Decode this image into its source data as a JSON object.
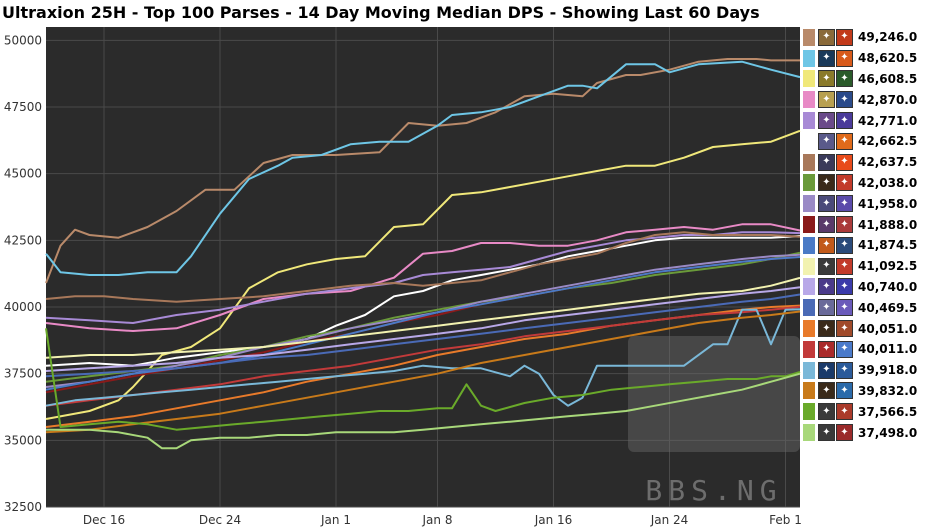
{
  "chart_data": {
    "type": "line",
    "title": "Ultraxion 25H - Top 100 Parses - 14 Day Moving Median DPS - Showing Last 60 Days",
    "xlabel": "",
    "ylabel": "",
    "x_ticks": [
      "Dec 16",
      "Dec 24",
      "Jan 1",
      "Jan 8",
      "Jan 16",
      "Jan 24",
      "Feb 1"
    ],
    "x_tick_days": [
      4,
      12,
      20,
      27,
      35,
      43,
      51
    ],
    "xlim": [
      0,
      52
    ],
    "ylim": [
      32500,
      50500
    ],
    "y_ticks": [
      32500,
      35000,
      37500,
      40000,
      42500,
      45000,
      47500,
      50000
    ],
    "y_tick_labels": [
      "32500",
      "35000",
      "37500",
      "40000",
      "42500",
      "45000",
      "47500",
      "50000"
    ],
    "grid": true,
    "legend_position": "right",
    "watermark": "BBS.NG",
    "series": [
      {
        "name": "49,246.0",
        "color": "#b98a6a",
        "icons": [
          "#8a6a3a",
          "#c23a1a"
        ],
        "x": [
          0,
          1,
          2,
          3,
          5,
          7,
          9,
          11,
          13,
          15,
          17,
          20,
          23,
          25,
          27,
          29,
          31,
          33,
          35,
          37,
          38,
          40,
          41,
          43,
          45,
          47,
          49,
          50,
          52
        ],
        "values": [
          40900,
          42300,
          42900,
          42700,
          42600,
          43000,
          43600,
          44400,
          44400,
          45400,
          45700,
          45700,
          45800,
          46900,
          46800,
          46900,
          47300,
          47900,
          48000,
          47900,
          48400,
          48700,
          48700,
          48900,
          49200,
          49300,
          49300,
          49246,
          49246
        ]
      },
      {
        "name": "48,620.5",
        "color": "#6ec6e6",
        "icons": [
          "#1a3a5a",
          "#d85a1a"
        ],
        "x": [
          0,
          1,
          3,
          5,
          7,
          8,
          9,
          10,
          12,
          14,
          16,
          17,
          19,
          21,
          23,
          25,
          27,
          28,
          30,
          31,
          32,
          34,
          36,
          37,
          38,
          40,
          42,
          43,
          45,
          48,
          50,
          52
        ],
        "values": [
          42000,
          41300,
          41200,
          41200,
          41300,
          41300,
          41300,
          41900,
          43500,
          44800,
          45300,
          45600,
          45700,
          46100,
          46200,
          46200,
          46800,
          47200,
          47300,
          47400,
          47500,
          47900,
          48300,
          48300,
          48200,
          49100,
          49100,
          48800,
          49100,
          49200,
          48900,
          48620
        ]
      },
      {
        "name": "46,608.5",
        "color": "#f0e87a",
        "icons": [
          "#8a7a2a",
          "#2a5a2a"
        ],
        "x": [
          0,
          3,
          5,
          6,
          8,
          10,
          12,
          14,
          16,
          18,
          20,
          22,
          24,
          26,
          28,
          30,
          32,
          34,
          36,
          38,
          40,
          42,
          44,
          46,
          48,
          50,
          52
        ],
        "values": [
          35800,
          36100,
          36500,
          37000,
          38200,
          38500,
          39200,
          40700,
          41300,
          41600,
          41800,
          41900,
          43000,
          43100,
          44200,
          44300,
          44500,
          44700,
          44900,
          45100,
          45300,
          45300,
          45600,
          46000,
          46100,
          46200,
          46608
        ]
      },
      {
        "name": "42,870.0",
        "color": "#e88ac6",
        "icons": [
          "#b8a050",
          "#2a4a8a"
        ],
        "x": [
          0,
          3,
          6,
          9,
          12,
          15,
          18,
          21,
          24,
          26,
          28,
          30,
          32,
          34,
          36,
          38,
          40,
          42,
          44,
          46,
          48,
          50,
          52
        ],
        "values": [
          39400,
          39200,
          39100,
          39200,
          39700,
          40300,
          40500,
          40600,
          41100,
          42000,
          42100,
          42400,
          42400,
          42300,
          42300,
          42500,
          42800,
          42900,
          43000,
          42900,
          43100,
          43100,
          42870
        ]
      },
      {
        "name": "42,771.0",
        "color": "#a88ad6",
        "icons": [
          "#6a4a8a",
          "#4a3a9a"
        ],
        "x": [
          0,
          3,
          6,
          9,
          12,
          15,
          18,
          21,
          24,
          26,
          28,
          30,
          32,
          34,
          36,
          38,
          40,
          42,
          44,
          46,
          48,
          50,
          52
        ],
        "values": [
          39600,
          39500,
          39400,
          39700,
          39900,
          40200,
          40500,
          40700,
          40900,
          41200,
          41300,
          41400,
          41500,
          41800,
          42100,
          42300,
          42500,
          42600,
          42700,
          42700,
          42800,
          42800,
          42771
        ]
      },
      {
        "name": "42,662.5",
        "color": "#ffffff",
        "icons": [
          "#5a5a8a",
          "#e06a1a"
        ],
        "x": [
          0,
          3,
          6,
          9,
          12,
          15,
          18,
          20,
          22,
          24,
          26,
          28,
          30,
          32,
          34,
          36,
          38,
          40,
          42,
          44,
          46,
          48,
          50,
          52
        ],
        "values": [
          37800,
          37900,
          37800,
          38100,
          38300,
          38500,
          38800,
          39300,
          39700,
          40400,
          40600,
          41000,
          41200,
          41400,
          41600,
          41900,
          42100,
          42300,
          42500,
          42600,
          42600,
          42600,
          42600,
          42662
        ]
      },
      {
        "name": "42,637.5",
        "color": "#a8785a",
        "icons": [
          "#3a3a5a",
          "#e84a1a"
        ],
        "x": [
          0,
          2,
          4,
          6,
          9,
          12,
          15,
          18,
          21,
          24,
          26,
          28,
          30,
          32,
          34,
          36,
          38,
          40,
          42,
          44,
          46,
          48,
          50,
          52
        ],
        "values": [
          40300,
          40400,
          40400,
          40300,
          40200,
          40300,
          40400,
          40600,
          40800,
          40900,
          40800,
          40900,
          41000,
          41300,
          41600,
          41800,
          42000,
          42400,
          42700,
          42800,
          42700,
          42700,
          42700,
          42637
        ]
      },
      {
        "name": "42,038.0",
        "color": "#6a9a3a",
        "icons": [
          "#3a2a1a",
          "#c23a2a"
        ],
        "x": [
          0,
          3,
          6,
          9,
          12,
          15,
          18,
          21,
          24,
          27,
          30,
          33,
          36,
          39,
          42,
          45,
          48,
          50,
          52
        ],
        "values": [
          37200,
          37400,
          37600,
          37800,
          38200,
          38500,
          38900,
          39200,
          39600,
          39900,
          40200,
          40400,
          40700,
          40900,
          41200,
          41400,
          41600,
          41800,
          42038
        ]
      },
      {
        "name": "41,958.0",
        "color": "#9a8ac6",
        "icons": [
          "#4a4a7a",
          "#5a4aaa"
        ],
        "x": [
          0,
          3,
          6,
          9,
          12,
          15,
          18,
          21,
          24,
          27,
          30,
          33,
          36,
          39,
          42,
          45,
          48,
          50,
          52
        ],
        "values": [
          37000,
          37200,
          37500,
          37800,
          38100,
          38500,
          38800,
          39200,
          39500,
          39800,
          40200,
          40500,
          40800,
          41100,
          41400,
          41600,
          41800,
          41900,
          41958
        ]
      },
      {
        "name": "41,888.0",
        "color": "#8a1a1a",
        "icons": [
          "#5a3a6a",
          "#aa3a3a"
        ],
        "x": [
          0,
          3,
          6,
          9,
          12,
          15,
          18,
          21,
          24,
          27,
          30,
          33,
          36,
          39,
          42,
          45,
          48,
          50,
          52
        ],
        "values": [
          36800,
          37100,
          37400,
          37700,
          38000,
          38300,
          38700,
          39000,
          39400,
          39700,
          40100,
          40400,
          40700,
          41000,
          41300,
          41500,
          41700,
          41800,
          41888
        ]
      },
      {
        "name": "41,874.5",
        "color": "#4a7ac6",
        "icons": [
          "#c25a1a",
          "#2a4a7a"
        ],
        "x": [
          0,
          3,
          6,
          9,
          12,
          15,
          18,
          21,
          24,
          27,
          30,
          33,
          36,
          39,
          42,
          45,
          48,
          50,
          52
        ],
        "values": [
          36900,
          37200,
          37500,
          37700,
          37900,
          38200,
          38600,
          39000,
          39400,
          39800,
          40100,
          40400,
          40700,
          41000,
          41300,
          41500,
          41700,
          41800,
          41874
        ]
      },
      {
        "name": "41,092.5",
        "color": "#f2f2b0",
        "icons": [
          "#3a3a3a",
          "#c23a2a"
        ],
        "x": [
          0,
          3,
          6,
          9,
          12,
          15,
          18,
          21,
          24,
          27,
          30,
          33,
          36,
          39,
          42,
          45,
          48,
          50,
          52
        ],
        "values": [
          38100,
          38200,
          38200,
          38300,
          38400,
          38500,
          38700,
          38900,
          39100,
          39300,
          39500,
          39700,
          39900,
          40100,
          40300,
          40500,
          40600,
          40800,
          41092
        ]
      },
      {
        "name": "40,740.0",
        "color": "#b8a8e8",
        "icons": [
          "#4a3a8a",
          "#3a3aaa"
        ],
        "x": [
          0,
          3,
          6,
          9,
          12,
          15,
          18,
          21,
          24,
          27,
          30,
          33,
          36,
          39,
          42,
          45,
          48,
          50,
          52
        ],
        "values": [
          37600,
          37700,
          37800,
          37900,
          38100,
          38200,
          38400,
          38600,
          38800,
          39000,
          39200,
          39500,
          39700,
          39900,
          40100,
          40300,
          40500,
          40600,
          40740
        ]
      },
      {
        "name": "40,469.5",
        "color": "#4a6ab6",
        "icons": [
          "#6a6a9a",
          "#6a5aba"
        ],
        "x": [
          0,
          3,
          6,
          9,
          12,
          15,
          18,
          21,
          24,
          27,
          30,
          33,
          36,
          39,
          42,
          45,
          48,
          50,
          52
        ],
        "values": [
          37400,
          37500,
          37600,
          37700,
          37900,
          38100,
          38200,
          38400,
          38600,
          38800,
          39000,
          39200,
          39400,
          39600,
          39800,
          40000,
          40200,
          40300,
          40469
        ]
      },
      {
        "name": "40,051.0",
        "color": "#e87a2a",
        "icons": [
          "#3a2a1a",
          "#a04a2a"
        ],
        "x": [
          0,
          3,
          6,
          9,
          12,
          15,
          18,
          21,
          24,
          27,
          30,
          33,
          36,
          39,
          42,
          45,
          48,
          50,
          52
        ],
        "values": [
          35500,
          35700,
          35900,
          36200,
          36500,
          36800,
          37200,
          37500,
          37800,
          38200,
          38500,
          38800,
          39000,
          39300,
          39500,
          39700,
          39900,
          40000,
          40051
        ]
      },
      {
        "name": "40,011.0",
        "color": "#c23a3a",
        "icons": [
          "#aa2a2a",
          "#4a7aca"
        ],
        "x": [
          0,
          3,
          6,
          9,
          12,
          15,
          18,
          21,
          24,
          27,
          30,
          33,
          36,
          39,
          42,
          45,
          48,
          50,
          52
        ],
        "values": [
          36300,
          36500,
          36700,
          36900,
          37100,
          37400,
          37600,
          37800,
          38100,
          38400,
          38600,
          38900,
          39100,
          39300,
          39500,
          39700,
          39800,
          39900,
          40011
        ]
      },
      {
        "name": "39,918.0",
        "color": "#7ab8d8",
        "icons": [
          "#1a3a6a",
          "#2a5a9a"
        ],
        "x": [
          0,
          2,
          4,
          6,
          8,
          10,
          12,
          14,
          16,
          18,
          20,
          22,
          24,
          26,
          28,
          30,
          32,
          33,
          34,
          35,
          36,
          37,
          38,
          40,
          42,
          44,
          46,
          47,
          48,
          49,
          50,
          51,
          52
        ],
        "values": [
          36300,
          36500,
          36600,
          36700,
          36800,
          36900,
          37000,
          37100,
          37200,
          37300,
          37400,
          37500,
          37600,
          37800,
          37700,
          37700,
          37400,
          37800,
          37500,
          36700,
          36300,
          36600,
          37800,
          37800,
          37800,
          37800,
          38600,
          38600,
          39900,
          39900,
          38600,
          39900,
          39918
        ]
      },
      {
        "name": "39,832.0",
        "color": "#c87a1a",
        "icons": [
          "#3a2a1a",
          "#2a6aaa"
        ],
        "x": [
          0,
          3,
          6,
          9,
          12,
          15,
          18,
          21,
          24,
          27,
          30,
          33,
          36,
          39,
          42,
          45,
          48,
          50,
          52
        ],
        "values": [
          35300,
          35400,
          35600,
          35800,
          36000,
          36300,
          36600,
          36900,
          37200,
          37500,
          37900,
          38200,
          38500,
          38800,
          39100,
          39400,
          39600,
          39700,
          39832
        ]
      },
      {
        "name": "37,566.5",
        "color": "#6aaa2a",
        "icons": [
          "#3a3a3a",
          "#aa3a2a"
        ],
        "x": [
          0,
          1,
          3,
          5,
          7,
          9,
          11,
          13,
          15,
          17,
          19,
          21,
          23,
          25,
          27,
          28,
          29,
          30,
          31,
          33,
          35,
          37,
          39,
          41,
          43,
          45,
          47,
          49,
          50,
          51,
          52
        ],
        "values": [
          39200,
          35500,
          35600,
          35700,
          35600,
          35400,
          35500,
          35600,
          35700,
          35800,
          35900,
          36000,
          36100,
          36100,
          36200,
          36200,
          37100,
          36300,
          36100,
          36400,
          36600,
          36700,
          36900,
          37000,
          37100,
          37200,
          37300,
          37300,
          37400,
          37400,
          37566
        ]
      },
      {
        "name": "37,498.0",
        "color": "#a8d87a",
        "icons": [
          "#3a3a3a",
          "#9a2a2a"
        ],
        "x": [
          0,
          3,
          5,
          7,
          8,
          9,
          10,
          12,
          14,
          16,
          18,
          20,
          22,
          24,
          26,
          28,
          30,
          32,
          34,
          36,
          38,
          40,
          42,
          44,
          46,
          48,
          50,
          52
        ],
        "values": [
          35400,
          35400,
          35300,
          35100,
          34700,
          34700,
          35000,
          35100,
          35100,
          35200,
          35200,
          35300,
          35300,
          35300,
          35400,
          35500,
          35600,
          35700,
          35800,
          35900,
          36000,
          36100,
          36300,
          36500,
          36700,
          36900,
          37200,
          37498
        ]
      }
    ]
  }
}
